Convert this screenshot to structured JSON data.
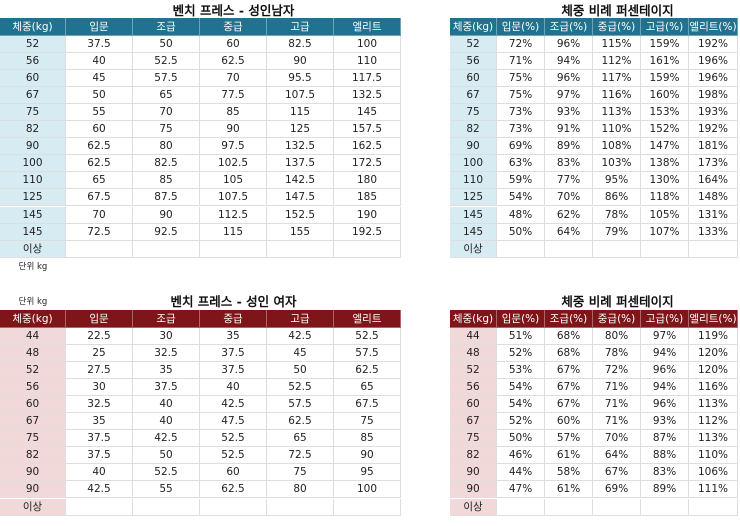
{
  "sections": [
    {
      "unit": "단위 kg",
      "left": {
        "title": "벤치 프레스 - 성인남자",
        "header": [
          "체중(kg)",
          "입문",
          "조급",
          "중급",
          "고급",
          "엘리트"
        ],
        "rows": [
          [
            "52",
            "37.5",
            "50",
            "60",
            "82.5",
            "100"
          ],
          [
            "56",
            "40",
            "52.5",
            "62.5",
            "90",
            "110"
          ],
          [
            "60",
            "45",
            "57.5",
            "70",
            "95.5",
            "117.5"
          ],
          [
            "67",
            "50",
            "65",
            "77.5",
            "107.5",
            "132.5"
          ],
          [
            "75",
            "55",
            "70",
            "85",
            "115",
            "145"
          ],
          [
            "82",
            "60",
            "75",
            "90",
            "125",
            "157.5"
          ],
          [
            "90",
            "62.5",
            "80",
            "97.5",
            "132.5",
            "162.5"
          ],
          [
            "100",
            "62.5",
            "82.5",
            "102.5",
            "137.5",
            "172.5"
          ],
          [
            "110",
            "65",
            "85",
            "105",
            "142.5",
            "180"
          ],
          [
            "125",
            "67.5",
            "87.5",
            "107.5",
            "147.5",
            "185"
          ],
          [
            "145",
            "70",
            "90",
            "112.5",
            "152.5",
            "190"
          ],
          [
            "145",
            "72.5",
            "92.5",
            "115",
            "155",
            "192.5"
          ]
        ],
        "footer": "이상"
      },
      "right": {
        "title": "체중 비례 퍼센테이지",
        "header": [
          "체중(kg)",
          "입문(%)",
          "조급(%)",
          "중급(%)",
          "고급(%)",
          "엘리트(%)"
        ],
        "rows": [
          [
            "52",
            "72%",
            "96%",
            "115%",
            "159%",
            "192%"
          ],
          [
            "56",
            "71%",
            "94%",
            "112%",
            "161%",
            "196%"
          ],
          [
            "60",
            "75%",
            "96%",
            "117%",
            "159%",
            "196%"
          ],
          [
            "67",
            "75%",
            "97%",
            "116%",
            "160%",
            "198%"
          ],
          [
            "75",
            "73%",
            "93%",
            "113%",
            "153%",
            "193%"
          ],
          [
            "82",
            "73%",
            "91%",
            "110%",
            "152%",
            "192%"
          ],
          [
            "90",
            "69%",
            "89%",
            "108%",
            "147%",
            "181%"
          ],
          [
            "100",
            "63%",
            "83%",
            "103%",
            "138%",
            "173%"
          ],
          [
            "110",
            "59%",
            "77%",
            "95%",
            "130%",
            "164%"
          ],
          [
            "125",
            "54%",
            "70%",
            "86%",
            "118%",
            "148%"
          ],
          [
            "145",
            "48%",
            "62%",
            "78%",
            "105%",
            "131%"
          ],
          [
            "145",
            "50%",
            "64%",
            "79%",
            "107%",
            "133%"
          ]
        ],
        "footer": "이상"
      }
    },
    {
      "unit": "단위 kg",
      "left": {
        "title": "벤치 프레스 - 성인 여자",
        "header": [
          "체중(kg)",
          "입문",
          "조급",
          "중급",
          "고급",
          "엘리트"
        ],
        "rows": [
          [
            "44",
            "22.5",
            "30",
            "35",
            "42.5",
            "52.5"
          ],
          [
            "48",
            "25",
            "32.5",
            "37.5",
            "45",
            "57.5"
          ],
          [
            "52",
            "27.5",
            "35",
            "37.5",
            "50",
            "62.5"
          ],
          [
            "56",
            "30",
            "37.5",
            "40",
            "52.5",
            "65"
          ],
          [
            "60",
            "32.5",
            "40",
            "42.5",
            "57.5",
            "67.5"
          ],
          [
            "67",
            "35",
            "40",
            "47.5",
            "62.5",
            "75"
          ],
          [
            "75",
            "37.5",
            "42.5",
            "52.5",
            "65",
            "85"
          ],
          [
            "82",
            "37.5",
            "50",
            "52.5",
            "72.5",
            "90"
          ],
          [
            "90",
            "40",
            "52.5",
            "60",
            "75",
            "95"
          ],
          [
            "90",
            "42.5",
            "55",
            "62.5",
            "80",
            "100"
          ]
        ],
        "footer": "이상"
      },
      "right": {
        "title": "체중 비례 퍼센테이지",
        "header": [
          "체중(kg)",
          "입문(%)",
          "조급(%)",
          "중급(%)",
          "고급(%)",
          "엘리트(%)"
        ],
        "rows": [
          [
            "44",
            "51%",
            "68%",
            "80%",
            "97%",
            "119%"
          ],
          [
            "48",
            "52%",
            "68%",
            "78%",
            "94%",
            "120%"
          ],
          [
            "52",
            "53%",
            "67%",
            "72%",
            "96%",
            "120%"
          ],
          [
            "56",
            "54%",
            "67%",
            "71%",
            "94%",
            "116%"
          ],
          [
            "60",
            "54%",
            "67%",
            "71%",
            "96%",
            "113%"
          ],
          [
            "67",
            "52%",
            "60%",
            "71%",
            "93%",
            "112%"
          ],
          [
            "75",
            "50%",
            "57%",
            "70%",
            "87%",
            "113%"
          ],
          [
            "82",
            "46%",
            "61%",
            "64%",
            "88%",
            "110%"
          ],
          [
            "90",
            "44%",
            "58%",
            "67%",
            "83%",
            "106%"
          ],
          [
            "90",
            "47%",
            "61%",
            "69%",
            "89%",
            "111%"
          ]
        ],
        "footer": "이상"
      }
    }
  ]
}
